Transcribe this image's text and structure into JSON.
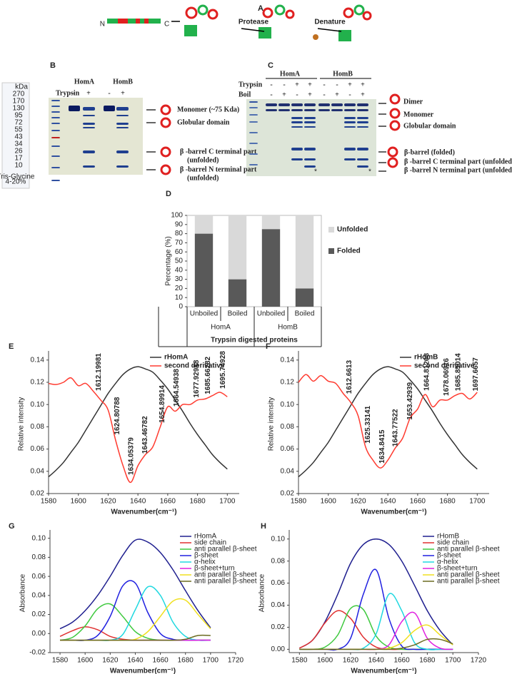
{
  "panel_a": {
    "label": "A",
    "n_term": "N",
    "c_term": "C",
    "step1": "Protease",
    "step2": "Denature"
  },
  "panel_b": {
    "label": "B",
    "ladder": [
      "kDa",
      "270",
      "170",
      "130",
      "95",
      "72",
      "55",
      "43",
      "34",
      "26",
      "17",
      "10"
    ],
    "gel_note": [
      "Tris-Glycine",
      "4-20%"
    ],
    "treatment": "Trypsin",
    "proteins": [
      "HomA",
      "HomB"
    ],
    "signs": [
      "-",
      "+",
      "-",
      "+"
    ],
    "annotations": [
      "Monomer (~75 Kda)",
      "Globular domain",
      "β -barrel C terminal part",
      "(unfolded)",
      "β -barrel N terminal part",
      "(unfolded)"
    ]
  },
  "panel_c": {
    "label": "C",
    "proteins": [
      "HomA",
      "HomB"
    ],
    "rows": [
      "Trypsin",
      "Boil"
    ],
    "trypsin": [
      "-",
      "-",
      "+",
      "+",
      "-",
      "-",
      "+",
      "+"
    ],
    "boil": [
      "-",
      "+",
      "-",
      "+",
      "-",
      "+",
      "-",
      "+"
    ],
    "markers": [
      "*",
      "*"
    ],
    "annotations": [
      "Dimer",
      "Monomer",
      "Globular domain",
      "β-barrel (folded)",
      "β -barrel C terminal part (unfolded)",
      "β -barrel N terminal part (unfolded)"
    ]
  },
  "chart_data": [
    {
      "type": "stacked_bar",
      "label": "D",
      "ylabel": "Percentage (%)",
      "xlabel": "Trypsin digested proteins",
      "categories": [
        "Unboiled",
        "Boiled",
        "Unboiled",
        "Boiled"
      ],
      "groups": [
        "HomA",
        "HomB"
      ],
      "series": [
        {
          "name": "Folded",
          "color": "#595959",
          "values": [
            80,
            30,
            85,
            20
          ]
        },
        {
          "name": "Unfolded",
          "color": "#d9d9d9",
          "values": [
            20,
            70,
            15,
            80
          ]
        }
      ],
      "ylim": [
        0,
        100
      ],
      "yticks": [
        0,
        10,
        20,
        30,
        40,
        50,
        60,
        70,
        80,
        90,
        100
      ]
    },
    {
      "type": "line",
      "label": "E",
      "ylabel": "Relative intensity",
      "xlabel": "Wavenumber(cm⁻¹)",
      "x": [
        1580,
        1585,
        1590,
        1595,
        1600,
        1605,
        1610,
        1615,
        1620,
        1625,
        1630,
        1635,
        1640,
        1645,
        1650,
        1655,
        1660,
        1665,
        1670,
        1675,
        1680,
        1685,
        1690,
        1695,
        1700
      ],
      "series": [
        {
          "name": "rHomA",
          "color": "#333333",
          "values": [
            0.035,
            0.041,
            0.048,
            0.057,
            0.066,
            0.077,
            0.088,
            0.099,
            0.11,
            0.119,
            0.127,
            0.132,
            0.134,
            0.132,
            0.129,
            0.122,
            0.114,
            0.104,
            0.094,
            0.083,
            0.073,
            0.064,
            0.055,
            0.048,
            0.042
          ]
        },
        {
          "name": "second derivative",
          "color": "#ff3b30",
          "values": [
            0.119,
            0.118,
            0.12,
            0.124,
            0.117,
            0.119,
            0.112,
            0.104,
            0.095,
            0.068,
            0.045,
            0.03,
            0.045,
            0.055,
            0.062,
            0.08,
            0.098,
            0.094,
            0.1,
            0.1,
            0.104,
            0.105,
            0.108,
            0.111,
            0.107
          ]
        }
      ],
      "annotations": [
        "1612.19981",
        "1624.80788",
        "1634.05379",
        "1643.46782",
        "1654.89914",
        "1664.54938",
        "1677.92988",
        "1685.66282",
        "1695.74928"
      ],
      "xlim": [
        1580,
        1708
      ],
      "xticks": [
        1580,
        1600,
        1620,
        1640,
        1660,
        1680,
        1700
      ],
      "ylim": [
        0.02,
        0.145
      ],
      "yticks": [
        0.02,
        0.04,
        0.06,
        0.08,
        {
          "value": 0.1,
          "label": "0.10"
        },
        0.12,
        0.14
      ],
      "legend": "upper right"
    },
    {
      "type": "line",
      "label": "F",
      "ylabel": "Relative intensity",
      "xlabel": "Wavenumber(cm⁻¹)",
      "x": [
        1580,
        1585,
        1590,
        1595,
        1600,
        1605,
        1610,
        1615,
        1620,
        1625,
        1630,
        1635,
        1640,
        1645,
        1650,
        1655,
        1660,
        1665,
        1670,
        1675,
        1680,
        1685,
        1690,
        1695,
        1700
      ],
      "series": [
        {
          "name": "rHomB",
          "color": "#333333",
          "values": [
            0.035,
            0.041,
            0.048,
            0.057,
            0.066,
            0.077,
            0.088,
            0.099,
            0.11,
            0.119,
            0.127,
            0.132,
            0.134,
            0.132,
            0.129,
            0.122,
            0.114,
            0.104,
            0.094,
            0.083,
            0.073,
            0.064,
            0.055,
            0.048,
            0.042
          ]
        },
        {
          "name": "second derivative",
          "color": "#ff3b30",
          "values": [
            0.12,
            0.127,
            0.121,
            0.126,
            0.121,
            0.119,
            0.11,
            0.102,
            0.09,
            0.062,
            0.05,
            0.043,
            0.05,
            0.061,
            0.07,
            0.088,
            0.096,
            0.109,
            0.098,
            0.104,
            0.104,
            0.108,
            0.11,
            0.105,
            0.111
          ]
        }
      ],
      "annotations": [
        "1612.6613",
        "1625.33141",
        "1634.8415",
        "1643.77522",
        "1653.42939",
        "1664.81268",
        "1678.06916",
        "1685.85014",
        "1697.6657"
      ],
      "xlim": [
        1580,
        1708
      ],
      "xticks": [
        1580,
        1600,
        1620,
        1640,
        1660,
        1680,
        1700
      ],
      "ylim": [
        0.02,
        0.145
      ],
      "yticks": [
        0.02,
        0.04,
        0.06,
        0.08,
        {
          "value": 0.1,
          "label": "0.10"
        },
        0.12,
        0.14
      ],
      "legend": "upper right"
    },
    {
      "type": "line",
      "label": "G",
      "ylabel": "Absorbance",
      "xlabel": "Wavenumber(cm⁻¹)",
      "x": [
        1580,
        1590,
        1600,
        1610,
        1620,
        1630,
        1640,
        1650,
        1660,
        1670,
        1680,
        1690,
        1700
      ],
      "series": [
        {
          "name": "rHomA",
          "color": "#1f1f8f",
          "values": [
            0.005,
            0.012,
            0.024,
            0.04,
            0.06,
            0.082,
            0.098,
            0.096,
            0.085,
            0.067,
            0.045,
            0.024,
            0.006
          ]
        },
        {
          "name": "side chain",
          "color": "#e03030",
          "values": [
            -0.003,
            0.003,
            0.007,
            0.004,
            -0.003,
            -0.006,
            -0.007,
            -0.007,
            -0.007,
            -0.007,
            -0.007,
            -0.007,
            -0.007
          ]
        },
        {
          "name": "anti parallel β-sheet",
          "color": "#3ec93e",
          "values": [
            -0.007,
            -0.004,
            0.008,
            0.026,
            0.031,
            0.018,
            0.002,
            -0.005,
            -0.007,
            -0.007,
            -0.007,
            -0.007,
            -0.007
          ]
        },
        {
          "name": "β-sheet",
          "color": "#2020e0",
          "values": [
            -0.007,
            -0.007,
            -0.007,
            -0.002,
            0.018,
            0.05,
            0.053,
            0.022,
            0.0,
            -0.006,
            -0.007,
            -0.007,
            -0.007
          ]
        },
        {
          "name": "α-helix",
          "color": "#20d8e0",
          "values": [
            -0.007,
            -0.007,
            -0.007,
            -0.007,
            -0.007,
            -0.001,
            0.025,
            0.049,
            0.04,
            0.012,
            -0.003,
            -0.007,
            -0.007
          ]
        },
        {
          "name": "β-sheet+turn",
          "color": "#e020e0",
          "values": [
            -0.007,
            -0.007,
            -0.007,
            -0.007,
            -0.007,
            -0.007,
            -0.007,
            -0.007,
            -0.007,
            -0.007,
            -0.007,
            -0.007,
            -0.007
          ]
        },
        {
          "name": "anti parallel β-sheet",
          "color": "#f0e020",
          "values": [
            -0.007,
            -0.007,
            -0.007,
            -0.007,
            -0.007,
            -0.007,
            -0.006,
            0.002,
            0.018,
            0.034,
            0.035,
            0.02,
            0.005
          ]
        },
        {
          "name": "anti parallel β-sheet",
          "color": "#6b6b20",
          "values": [
            -0.007,
            -0.007,
            -0.007,
            -0.007,
            -0.007,
            -0.007,
            -0.007,
            -0.007,
            -0.007,
            -0.007,
            -0.006,
            -0.002,
            -0.002
          ]
        }
      ],
      "xlim": [
        1572,
        1720
      ],
      "xticks": [
        1580,
        1600,
        1620,
        1640,
        1660,
        1680,
        1700,
        1720
      ],
      "ylim": [
        -0.02,
        0.105
      ],
      "yticks": [
        -0.02,
        {
          "value": 0,
          "label": "0.00"
        },
        0.02,
        0.04,
        0.06,
        0.08,
        {
          "value": 0.1,
          "label": "0.10"
        }
      ],
      "legend": "upper right"
    },
    {
      "type": "line",
      "label": "H",
      "ylabel": "Absorbance",
      "xlabel": "Wavenumber(cm⁻¹)",
      "x": [
        1580,
        1590,
        1600,
        1610,
        1620,
        1630,
        1640,
        1650,
        1660,
        1670,
        1680,
        1690,
        1700
      ],
      "series": [
        {
          "name": "rHomB",
          "color": "#1f1f8f",
          "values": [
            0.001,
            0.008,
            0.025,
            0.05,
            0.078,
            0.095,
            0.1,
            0.095,
            0.08,
            0.058,
            0.035,
            0.017,
            0.004
          ]
        },
        {
          "name": "side chain",
          "color": "#e03030",
          "values": [
            0.001,
            0.008,
            0.024,
            0.035,
            0.028,
            0.011,
            0.002,
            0,
            0,
            0,
            0,
            0,
            0
          ]
        },
        {
          "name": "anti parallel β-sheet",
          "color": "#3ec93e",
          "values": [
            0,
            0,
            0.002,
            0.013,
            0.037,
            0.036,
            0.012,
            0.002,
            0,
            0,
            0,
            0,
            0
          ]
        },
        {
          "name": "β-sheet",
          "color": "#2020e0",
          "values": [
            0,
            0,
            0,
            0,
            0.01,
            0.05,
            0.072,
            0.028,
            0.003,
            0,
            0,
            0,
            0
          ]
        },
        {
          "name": "α-helix",
          "color": "#20d8e0",
          "values": [
            0,
            0,
            0,
            0,
            0,
            0.001,
            0.014,
            0.05,
            0.035,
            0.006,
            0,
            0,
            0
          ]
        },
        {
          "name": "β-sheet+turn",
          "color": "#e020e0",
          "values": [
            0,
            0,
            0,
            0,
            0,
            0,
            0,
            0.004,
            0.025,
            0.033,
            0.01,
            0.001,
            0
          ]
        },
        {
          "name": "anti parallel β-sheet",
          "color": "#f0e020",
          "values": [
            0,
            0,
            0,
            0,
            0,
            0,
            0,
            0.001,
            0.006,
            0.017,
            0.022,
            0.013,
            0.004
          ]
        },
        {
          "name": "anti parallel β-sheet",
          "color": "#6b6b20",
          "values": [
            0,
            0,
            0,
            0,
            0,
            0,
            0,
            0,
            0.001,
            0.004,
            0.009,
            0.009,
            0.005
          ]
        }
      ],
      "xlim": [
        1572,
        1720
      ],
      "xticks": [
        1580,
        1600,
        1620,
        1640,
        1660,
        1680,
        1700,
        1720
      ],
      "ylim": [
        -0.003,
        0.105
      ],
      "yticks": [
        {
          "value": 0,
          "label": "0.00"
        },
        0.02,
        0.04,
        0.06,
        0.08,
        {
          "value": 0.1,
          "label": "0.10"
        }
      ],
      "legend": "upper right"
    }
  ]
}
